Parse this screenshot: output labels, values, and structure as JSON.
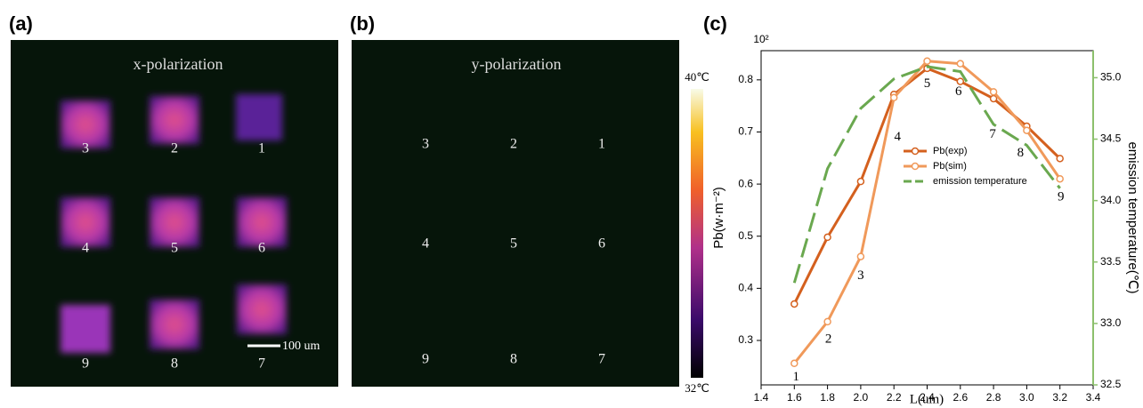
{
  "panels": {
    "a": {
      "label": "(a)",
      "title": "x-polarization",
      "numbers": [
        "3",
        "2",
        "1",
        "4",
        "5",
        "6",
        "9",
        "8",
        "7"
      ],
      "scale_bar": "100 um"
    },
    "b": {
      "label": "(b)",
      "title": "y-polarization",
      "numbers": [
        "3",
        "2",
        "1",
        "4",
        "5",
        "6",
        "9",
        "8",
        "7"
      ],
      "colorbar_max": "40℃",
      "colorbar_min": "32℃"
    }
  },
  "chart_data": {
    "type": "line",
    "panel_label": "(c)",
    "x_label": "L(um)",
    "y_label": "Pb(w·m⁻²)",
    "y_multiplier": "10²",
    "y2_label": "emission temperature(℃)",
    "x": [
      1.6,
      1.8,
      2.0,
      2.2,
      2.4,
      2.6,
      2.8,
      3.0,
      3.2
    ],
    "series": [
      {
        "name": "Pb(exp)",
        "color": "#d4601e",
        "marker": true,
        "values": [
          0.37,
          0.498,
          0.605,
          0.772,
          0.822,
          0.797,
          0.764,
          0.711,
          0.649
        ]
      },
      {
        "name": "Pb(sim)",
        "color": "#f0995a",
        "marker": true,
        "values": [
          0.256,
          0.336,
          0.461,
          0.766,
          0.836,
          0.831,
          0.777,
          0.703,
          0.61
        ]
      },
      {
        "name": "emission temperature",
        "color": "#6aa84f",
        "dashed": true,
        "axis": "y2",
        "values": [
          33.33,
          34.26,
          34.75,
          34.99,
          35.09,
          35.05,
          34.62,
          34.45,
          34.1
        ]
      }
    ],
    "annotations": [
      "1",
      "2",
      "3",
      "4",
      "5",
      "6",
      "7",
      "8",
      "9"
    ],
    "xlim": [
      1.4,
      3.4
    ],
    "xticks": [
      1.4,
      1.6,
      1.8,
      {
        "value": 2,
        "label": "2.0"
      },
      2.2,
      2.4,
      2.6,
      2.8,
      {
        "value": 3,
        "label": "3.0"
      },
      3.2,
      3.4
    ],
    "ylim": [
      0.2147,
      0.856
    ],
    "yticks": [
      0.3,
      0.4,
      0.5,
      0.6,
      0.7,
      0.8
    ],
    "y2lim": [
      32.5,
      35.22
    ],
    "y2ticks": [
      32.5,
      {
        "value": 33,
        "label": "33.0"
      },
      33.5,
      {
        "value": 34,
        "label": "34.0"
      },
      34.5,
      {
        "value": 35,
        "label": "35.0"
      }
    ],
    "y2_color": "#8cc06c",
    "legend": "right"
  }
}
